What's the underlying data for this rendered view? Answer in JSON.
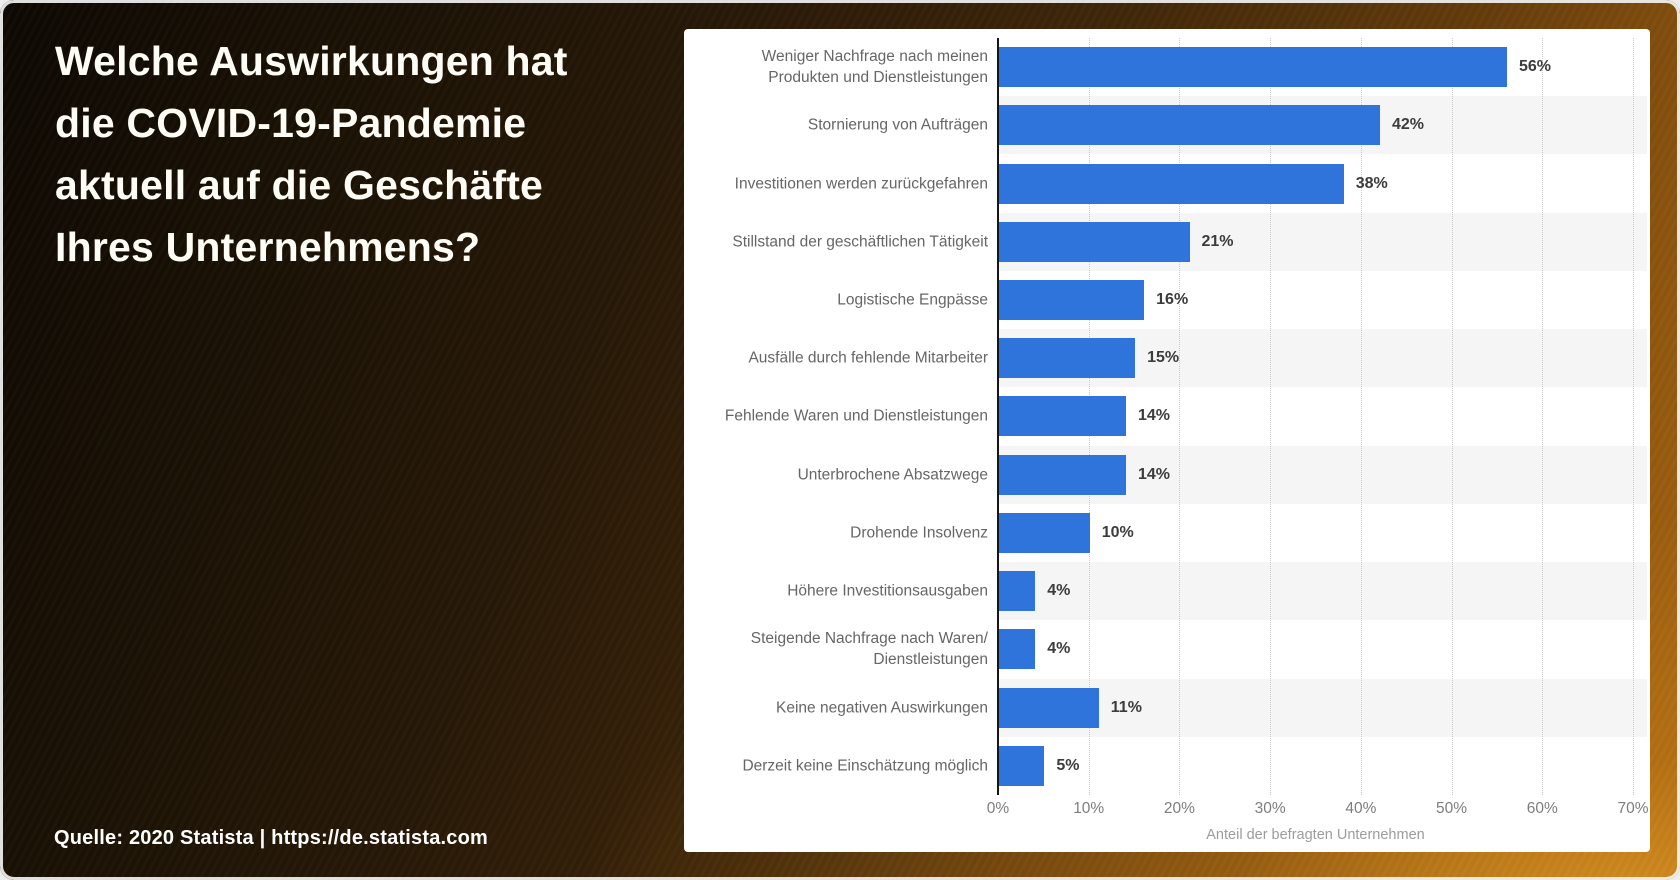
{
  "slide": {
    "title": "Welche Auswirkungen hat\ndie COVID-19-Pandemie\naktuell auf die Geschäfte\nIhres Unternehmens?",
    "source": "Quelle: 2020 Statista | https://de.statista.com",
    "title_color": "#fdfdf6",
    "background_colors": {
      "dark_corner": "#0d0803",
      "mid_brown": "#402709",
      "orange": "#ad6a12",
      "highlight": "#e09824"
    }
  },
  "chart_data": {
    "type": "bar",
    "orientation": "horizontal",
    "title": "",
    "categories": [
      "Weniger Nachfrage nach meinen\nProdukten und Dienstleistungen",
      "Stornierung von Aufträgen",
      "Investitionen werden zurückgefahren",
      "Stillstand der geschäftlichen Tätigkeit",
      "Logistische Engpässe",
      "Ausfälle durch fehlende Mitarbeiter",
      "Fehlende Waren und Dienstleistungen",
      "Unterbrochene Absatzwege",
      "Drohende Insolvenz",
      "Höhere Investitionsausgaben",
      "Steigende Nachfrage nach Waren/ Dienstleistungen",
      "Keine negativen Auswirkungen",
      "Derzeit keine Einschätzung möglich"
    ],
    "values": [
      56,
      42,
      38,
      21,
      16,
      15,
      14,
      14,
      10,
      4,
      4,
      11,
      5
    ],
    "value_labels": [
      "56%",
      "42%",
      "38%",
      "21%",
      "16%",
      "15%",
      "14%",
      "14%",
      "10%",
      "4%",
      "4%",
      "11%",
      "5%"
    ],
    "x_ticks": [
      "0%",
      "10%",
      "20%",
      "30%",
      "40%",
      "50%",
      "60%",
      "70%"
    ],
    "xlim": [
      0,
      70
    ],
    "xlabel": "Anteil der befragten Unternehmen",
    "grid": "vertical-dotted",
    "zebra_rows": "every second category shaded",
    "bar_color": "#2e74db",
    "stripe_color": "#f5f5f6",
    "gridline_color": "#c9c9c9",
    "axis_color": "#161616",
    "category_label_color": "#666666",
    "value_label_color": "#3c3c3c",
    "tick_label_color": "#7d7d7d",
    "xlabel_color": "#9c9c9c",
    "legend": null
  }
}
